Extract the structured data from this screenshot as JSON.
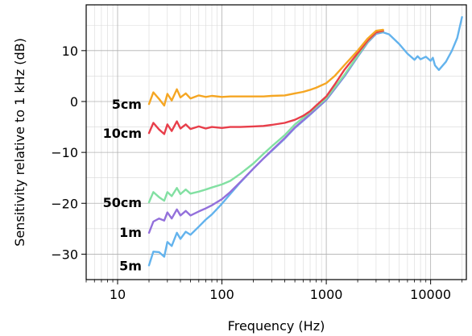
{
  "chart_data": {
    "type": "line",
    "xlabel": "Frequency (Hz)",
    "ylabel": "Sensitivity relative to 1 kHz (dB)",
    "xscale": "log",
    "xlim": [
      5,
      22000
    ],
    "ylim": [
      -35,
      19
    ],
    "grid": "major and minor, both axes",
    "legend": "none (series labelled inline at left)",
    "xticks": [
      {
        "value": 10,
        "label": "10"
      },
      {
        "value": 100,
        "label": "100"
      },
      {
        "value": 1000,
        "label": "1000"
      },
      {
        "value": 10000,
        "label": "10000"
      }
    ],
    "yticks": [
      {
        "value": 10,
        "label": "10"
      },
      {
        "value": 0,
        "label": "0"
      },
      {
        "value": -10,
        "label": "−10"
      },
      {
        "value": -20,
        "label": "−20"
      },
      {
        "value": -30,
        "label": "−30"
      }
    ],
    "series": [
      {
        "name": "5cm",
        "color": "#f5a623",
        "x": [
          20,
          22,
          25,
          28,
          30,
          33,
          37,
          40,
          45,
          50,
          60,
          70,
          80,
          100,
          120,
          150,
          200,
          250,
          300,
          400,
          500,
          600,
          700,
          800,
          1000,
          1200,
          1500,
          2000,
          2500,
          3000,
          3500
        ],
        "y": [
          -0.5,
          1.8,
          0.5,
          -0.8,
          1.5,
          0.2,
          2.4,
          0.8,
          1.6,
          0.6,
          1.2,
          0.9,
          1.1,
          0.9,
          1.0,
          1.0,
          1.0,
          1.0,
          1.1,
          1.2,
          1.6,
          1.9,
          2.3,
          2.7,
          3.6,
          5.0,
          7.2,
          10.0,
          12.4,
          13.9,
          14.1
        ]
      },
      {
        "name": "10cm",
        "color": "#e83e4a",
        "x": [
          20,
          22,
          25,
          28,
          30,
          33,
          37,
          40,
          45,
          50,
          60,
          70,
          80,
          100,
          120,
          150,
          200,
          250,
          300,
          400,
          500,
          600,
          700,
          800,
          1000,
          1200,
          1500,
          2000,
          2500,
          3000,
          3500
        ],
        "y": [
          -6.2,
          -4.2,
          -5.5,
          -6.4,
          -4.5,
          -5.8,
          -3.9,
          -5.3,
          -4.5,
          -5.4,
          -4.9,
          -5.3,
          -5.0,
          -5.2,
          -5.0,
          -5.0,
          -4.9,
          -4.8,
          -4.6,
          -4.2,
          -3.6,
          -2.8,
          -1.9,
          -0.8,
          1.0,
          3.3,
          6.3,
          9.5,
          12.0,
          13.6,
          13.9
        ]
      },
      {
        "name": "50cm",
        "color": "#82e0a2",
        "x": [
          20,
          22,
          25,
          28,
          30,
          33,
          37,
          40,
          45,
          50,
          60,
          70,
          80,
          100,
          120,
          150,
          200,
          250,
          300,
          400,
          500,
          700,
          1000,
          1500,
          2000,
          2500,
          3000,
          3500
        ],
        "y": [
          -19.8,
          -17.8,
          -18.8,
          -19.5,
          -17.8,
          -18.6,
          -17.0,
          -18.2,
          -17.3,
          -18.1,
          -17.7,
          -17.3,
          -16.9,
          -16.3,
          -15.6,
          -14.2,
          -12.2,
          -10.3,
          -8.8,
          -6.6,
          -4.5,
          -2.1,
          0.6,
          5.3,
          9.0,
          11.8,
          13.5,
          13.8
        ]
      },
      {
        "name": "1m",
        "color": "#9370db",
        "x": [
          20,
          22,
          25,
          28,
          30,
          33,
          37,
          40,
          45,
          50,
          60,
          70,
          80,
          100,
          120,
          150,
          200,
          250,
          300,
          400,
          500,
          700,
          1000,
          1500,
          2000,
          2500,
          3000,
          3500
        ],
        "y": [
          -25.8,
          -23.6,
          -23.0,
          -23.4,
          -21.8,
          -23.0,
          -21.2,
          -22.4,
          -21.5,
          -22.4,
          -21.6,
          -21.0,
          -20.4,
          -19.2,
          -17.8,
          -15.8,
          -13.2,
          -11.2,
          -9.6,
          -7.2,
          -5.1,
          -2.5,
          0.4,
          5.1,
          8.9,
          11.7,
          13.4,
          13.8
        ]
      },
      {
        "name": "5m",
        "color": "#63b3ed",
        "x": [
          20,
          22,
          25,
          28,
          30,
          33,
          37,
          40,
          45,
          50,
          60,
          70,
          80,
          100,
          120,
          150,
          200,
          250,
          300,
          400,
          500,
          700,
          1000,
          1500,
          2000,
          2500,
          3000,
          3500,
          4000,
          5000,
          6000,
          7000,
          7500,
          8000,
          9000,
          10000,
          10500,
          11000,
          12000,
          14000,
          16000,
          18000,
          20000
        ],
        "y": [
          -32.2,
          -29.5,
          -29.6,
          -30.5,
          -27.6,
          -28.4,
          -25.8,
          -27.0,
          -25.6,
          -26.2,
          -24.6,
          -23.2,
          -22.2,
          -20.1,
          -18.2,
          -15.9,
          -13.2,
          -11.2,
          -9.7,
          -7.3,
          -5.2,
          -2.6,
          0.3,
          5.0,
          8.8,
          11.6,
          13.3,
          13.6,
          13.2,
          11.3,
          9.4,
          8.2,
          8.9,
          8.3,
          8.8,
          8.0,
          8.6,
          7.1,
          6.2,
          7.8,
          10.0,
          12.5,
          16.6
        ]
      }
    ]
  }
}
